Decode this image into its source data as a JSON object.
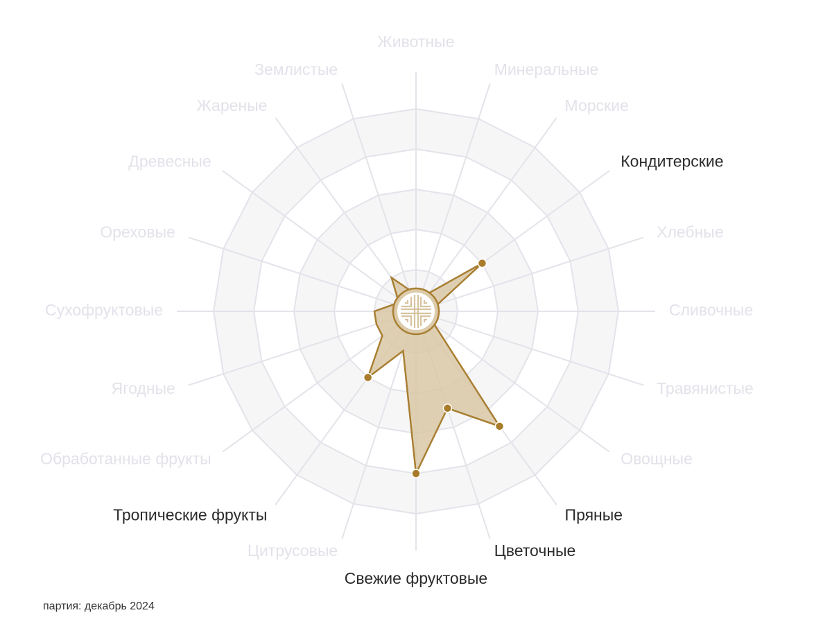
{
  "chart_data": {
    "type": "radar",
    "categories": [
      "Животные",
      "Минеральные",
      "Морские",
      "Кондитерские",
      "Хлебные",
      "Сливочные",
      "Травянистые",
      "Овощные",
      "Пряные",
      "Цветочные",
      "Свежие фруктовые",
      "Цитрусовые",
      "Тропические фрукты",
      "Обработанные фрукты",
      "Ягодные",
      "Сухофруктовые",
      "Ореховые",
      "Древесные",
      "Жареные",
      "Землистые"
    ],
    "values": [
      0,
      0,
      0,
      2,
      0,
      0,
      0,
      0,
      3.5,
      2.5,
      4,
      1,
      2,
      1,
      1,
      1,
      0,
      0,
      1,
      0
    ],
    "rlim": [
      0,
      5
    ],
    "rings": [
      1,
      2,
      3,
      4,
      5
    ],
    "highlighted_categories": [
      "Кондитерские",
      "Пряные",
      "Цветочные",
      "Свежие фруктовые",
      "Тропические фрукты"
    ],
    "grid": true,
    "center_emblem": "shou-symbol",
    "colors": {
      "fill": "#d9c8a6",
      "stroke": "#a97f32",
      "marker": "#a97c2c",
      "grid": "#e3e3ea",
      "band": "#f6f6f7",
      "label_dim": "#e2e2ea",
      "label_active": "#2b2b2b"
    }
  },
  "footer": {
    "batch_label": "партия: декабрь 2024"
  }
}
